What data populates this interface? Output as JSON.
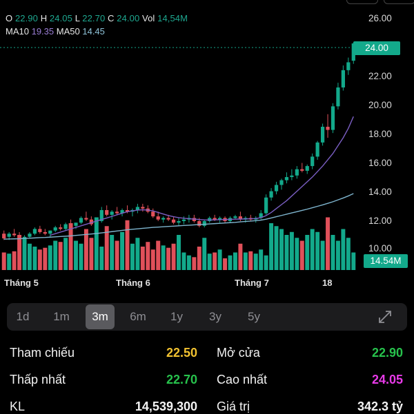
{
  "ohlc": {
    "o_label": "O",
    "o_value": "22.90",
    "h_label": "H",
    "h_value": "24.05",
    "l_label": "L",
    "l_value": "22.70",
    "c_label": "C",
    "c_value": "24.00",
    "vol_label": "Vol",
    "vol_value": "14,54M"
  },
  "ma": {
    "ma10_label": "MA10",
    "ma10_value": "19.35",
    "ma50_label": "MA50",
    "ma50_value": "14.45"
  },
  "price_tag": "24.00",
  "volume_tag": "14.54M",
  "y_axis": [
    "26.00",
    "22.00",
    "20.00",
    "18.00",
    "16.00",
    "14.00",
    "12.00",
    "10.00"
  ],
  "x_axis": [
    "Tháng 5",
    "Tháng 6",
    "Tháng 7",
    "18"
  ],
  "tabs": [
    "1d",
    "1m",
    "3m",
    "6m",
    "1y",
    "3y",
    "5y"
  ],
  "active_tab": "3m",
  "stats": {
    "ref_label": "Tham chiếu",
    "ref_value": "22.50",
    "open_label": "Mở cửa",
    "open_value": "22.90",
    "low_label": "Thấp nhất",
    "low_value": "22.70",
    "high_label": "Cao nhất",
    "high_value": "24.05",
    "kl_label": "KL",
    "kl_value": "14,539,300",
    "gt_label": "Giá trị",
    "gt_value": "342.3 tỷ"
  },
  "colors": {
    "up": "#13a98b",
    "down": "#e0505a",
    "ma10": "#7b5fc4",
    "ma50": "#7fb6d0",
    "price_line": "#13a98b"
  },
  "chart_data": {
    "type": "candlestick",
    "ylim": [
      9.5,
      26.5
    ],
    "candles": [
      [
        11.9,
        12.1,
        11.5,
        11.6
      ],
      [
        11.7,
        12.0,
        11.5,
        11.9
      ],
      [
        11.9,
        12.2,
        11.7,
        11.8
      ],
      [
        11.8,
        12.0,
        11.4,
        11.5
      ],
      [
        11.5,
        11.8,
        11.3,
        11.7
      ],
      [
        11.7,
        12.0,
        11.6,
        11.9
      ],
      [
        11.9,
        12.3,
        11.8,
        12.2
      ],
      [
        12.2,
        12.4,
        11.9,
        12.0
      ],
      [
        12.0,
        12.2,
        11.8,
        11.9
      ],
      [
        11.9,
        12.1,
        11.7,
        12.1
      ],
      [
        12.1,
        12.4,
        12.0,
        12.3
      ],
      [
        12.3,
        12.5,
        12.1,
        12.2
      ],
      [
        12.2,
        12.6,
        12.1,
        12.5
      ],
      [
        12.5,
        12.8,
        12.3,
        12.4
      ],
      [
        12.4,
        12.6,
        12.2,
        12.6
      ],
      [
        12.6,
        13.0,
        12.5,
        12.9
      ],
      [
        12.9,
        13.3,
        12.7,
        12.8
      ],
      [
        12.8,
        13.0,
        12.4,
        12.5
      ],
      [
        12.5,
        12.8,
        12.3,
        12.7
      ],
      [
        12.7,
        13.6,
        12.6,
        13.4
      ],
      [
        13.4,
        13.7,
        13.0,
        13.1
      ],
      [
        13.1,
        13.4,
        12.8,
        13.3
      ],
      [
        13.3,
        13.6,
        13.1,
        13.2
      ],
      [
        13.2,
        13.5,
        13.0,
        13.4
      ],
      [
        13.4,
        13.7,
        13.2,
        13.3
      ],
      [
        13.3,
        13.5,
        13.0,
        13.4
      ],
      [
        13.4,
        13.8,
        13.2,
        13.6
      ],
      [
        13.6,
        13.8,
        13.3,
        13.5
      ],
      [
        13.5,
        13.7,
        13.2,
        13.3
      ],
      [
        13.3,
        13.5,
        12.9,
        13.0
      ],
      [
        13.0,
        13.3,
        12.7,
        12.8
      ],
      [
        12.8,
        13.0,
        12.6,
        12.9
      ],
      [
        12.9,
        13.1,
        12.7,
        12.8
      ],
      [
        12.8,
        13.0,
        12.5,
        12.6
      ],
      [
        12.6,
        12.9,
        12.4,
        12.7
      ],
      [
        12.7,
        13.0,
        12.5,
        12.8
      ],
      [
        12.8,
        13.1,
        12.6,
        12.9
      ],
      [
        12.9,
        13.1,
        12.6,
        12.7
      ],
      [
        12.7,
        12.9,
        12.3,
        12.4
      ],
      [
        12.4,
        12.8,
        12.3,
        12.7
      ],
      [
        12.7,
        13.0,
        12.6,
        12.9
      ],
      [
        12.9,
        13.1,
        12.7,
        12.8
      ],
      [
        12.8,
        13.0,
        12.6,
        12.9
      ],
      [
        12.9,
        13.0,
        12.6,
        12.7
      ],
      [
        12.7,
        13.0,
        12.6,
        12.9
      ],
      [
        12.9,
        13.1,
        12.8,
        13.0
      ],
      [
        13.0,
        13.3,
        12.7,
        12.8
      ],
      [
        12.8,
        13.0,
        12.6,
        12.9
      ],
      [
        12.9,
        13.1,
        12.7,
        12.8
      ],
      [
        12.8,
        13.0,
        12.6,
        12.9
      ],
      [
        12.9,
        13.4,
        12.8,
        13.2
      ],
      [
        13.2,
        14.4,
        13.1,
        14.2
      ],
      [
        14.2,
        14.8,
        14.0,
        14.6
      ],
      [
        14.6,
        15.2,
        14.4,
        15.0
      ],
      [
        15.0,
        15.4,
        14.7,
        15.3
      ],
      [
        15.3,
        15.8,
        15.1,
        15.5
      ],
      [
        15.5,
        16.0,
        15.3,
        15.6
      ],
      [
        15.6,
        16.2,
        15.4,
        16.0
      ],
      [
        16.0,
        16.4,
        15.8,
        15.9
      ],
      [
        15.9,
        16.3,
        15.7,
        16.2
      ],
      [
        16.2,
        17.0,
        16.0,
        16.8
      ],
      [
        16.8,
        17.8,
        16.6,
        17.7
      ],
      [
        17.7,
        18.9,
        17.5,
        18.7
      ],
      [
        18.7,
        19.5,
        18.0,
        18.5
      ],
      [
        18.5,
        20.2,
        18.3,
        20.0
      ],
      [
        20.0,
        21.5,
        19.8,
        21.2
      ],
      [
        21.2,
        22.6,
        21.0,
        22.3
      ],
      [
        22.3,
        23.1,
        22.0,
        22.8
      ],
      [
        22.9,
        24.05,
        22.7,
        24.0
      ]
    ],
    "volumes": [
      0.3,
      0.28,
      0.32,
      0.6,
      0.55,
      0.45,
      0.4,
      0.35,
      0.38,
      0.42,
      0.5,
      0.48,
      0.55,
      0.8,
      0.5,
      0.45,
      0.7,
      0.55,
      0.9,
      0.4,
      0.75,
      0.6,
      0.5,
      0.65,
      0.85,
      0.45,
      0.55,
      0.4,
      0.48,
      0.35,
      0.5,
      0.42,
      0.38,
      0.45,
      0.6,
      0.3,
      0.25,
      0.22,
      0.4,
      0.55,
      0.28,
      0.3,
      0.35,
      0.2,
      0.25,
      0.3,
      0.45,
      0.3,
      0.32,
      0.28,
      0.35,
      0.25,
      0.8,
      0.75,
      0.7,
      0.6,
      0.65,
      0.55,
      0.5,
      0.6,
      0.7,
      0.65,
      0.5,
      0.9,
      0.6,
      0.5,
      0.7,
      0.55,
      0.3
    ],
    "ma10": [
      null,
      null,
      null,
      null,
      null,
      null,
      null,
      null,
      null,
      11.8,
      11.9,
      12.0,
      12.1,
      12.2,
      12.3,
      12.4,
      12.5,
      12.6,
      12.7,
      12.8,
      12.9,
      13.0,
      13.1,
      13.2,
      13.3,
      13.35,
      13.4,
      13.42,
      13.4,
      13.35,
      13.25,
      13.15,
      13.05,
      12.98,
      12.92,
      12.88,
      12.85,
      12.83,
      12.8,
      12.78,
      12.77,
      12.78,
      12.79,
      12.8,
      12.81,
      12.82,
      12.83,
      12.84,
      12.85,
      12.86,
      12.92,
      13.05,
      13.25,
      13.5,
      13.75,
      14.0,
      14.3,
      14.6,
      14.9,
      15.2,
      15.5,
      15.85,
      16.2,
      16.6,
      17.0,
      17.5,
      18.0,
      18.6,
      19.35
    ],
    "ma50": [
      11.55,
      11.56,
      11.57,
      11.58,
      11.6,
      11.61,
      11.63,
      11.65,
      11.66,
      11.68,
      11.7,
      11.72,
      11.74,
      11.76,
      11.79,
      11.82,
      11.85,
      11.88,
      11.91,
      11.95,
      11.99,
      12.03,
      12.07,
      12.11,
      12.15,
      12.18,
      12.21,
      12.24,
      12.27,
      12.3,
      12.32,
      12.34,
      12.36,
      12.38,
      12.4,
      12.42,
      12.44,
      12.46,
      12.48,
      12.5,
      12.52,
      12.54,
      12.56,
      12.58,
      12.6,
      12.62,
      12.65,
      12.68,
      12.7,
      12.73,
      12.76,
      12.82,
      12.9,
      12.98,
      13.06,
      13.14,
      13.22,
      13.3,
      13.38,
      13.46,
      13.55,
      13.64,
      13.73,
      13.83,
      13.93,
      14.05,
      14.17,
      14.3,
      14.45
    ]
  }
}
